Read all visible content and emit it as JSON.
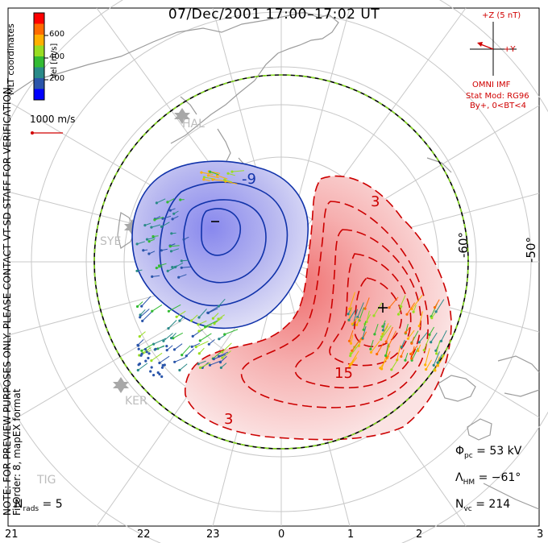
{
  "title": "07/Dec/2001  17:00–17:02 UT",
  "coordinates": "MLT coordinates",
  "colorbar": {
    "label": "Vel [m/s]",
    "ticks": [
      "600",
      "400",
      "200"
    ],
    "colors": [
      "#ff0000",
      "#ff6a00",
      "#ffb000",
      "#99dd22",
      "#33bb33",
      "#2a8a88",
      "#2a55aa",
      "#0000ff"
    ]
  },
  "scale_vector": "1000 m/s",
  "imf": {
    "z_label": "+Z (5 nT)",
    "y_label": "+Y",
    "source": "OMNI IMF",
    "model": "Stat Mod: RG96",
    "condition": "By+, 0<BT<4"
  },
  "notice": "NOTE: FOR PREVIEW PURPOSES ONLY. PLEASE CONTACT VT-SD STAFF FOR VERIFICATION.",
  "fit_info": "FitOrder: 8, mapEX format",
  "stats": {
    "phi_pc": "53 kV",
    "lambda_hm": "−61°",
    "n_vc": "214",
    "n_rads": "5"
  },
  "mlt_labels": [
    "21",
    "22",
    "23",
    "0",
    "1",
    "2",
    "3"
  ],
  "latitude_labels": [
    "-60°",
    "-50°"
  ],
  "stations": [
    "HAL",
    "SYE",
    "KER",
    "TIG"
  ],
  "contour_labels": {
    "negative": "-9",
    "positive_outer": "3",
    "positive_mid": "15",
    "positive_bottom": "3"
  },
  "extrema": {
    "min_marker": "−",
    "max_marker": "+"
  },
  "colors": {
    "positive": "#cc0000",
    "negative": "#1133aa",
    "boundary_dash": "#88dd22",
    "grid": "#c8c8c8"
  }
}
